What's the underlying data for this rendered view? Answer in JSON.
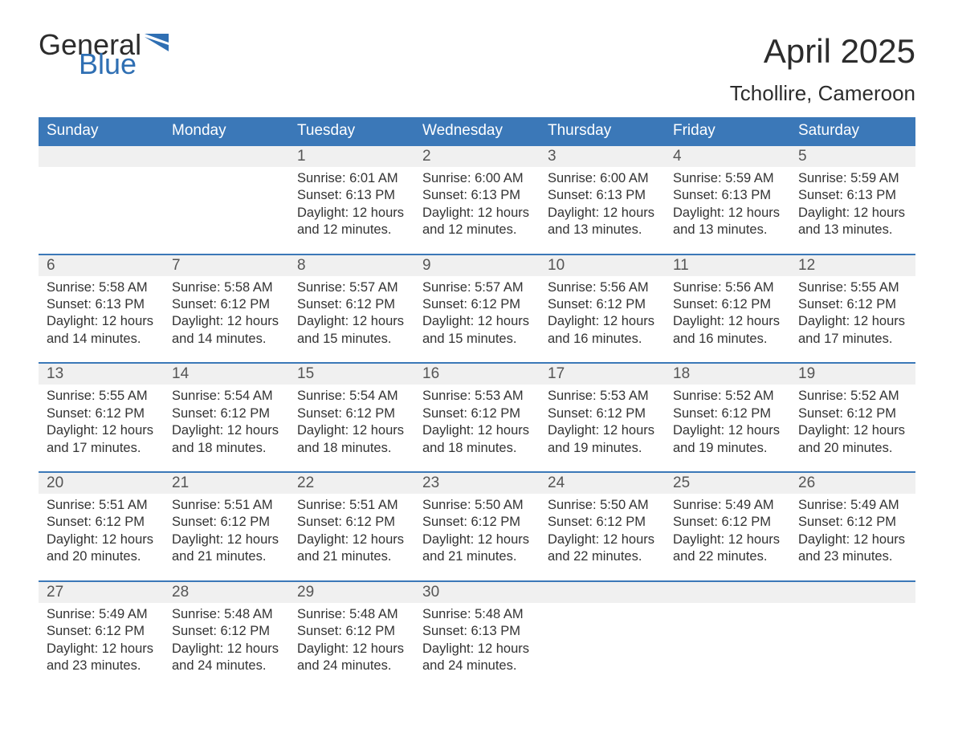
{
  "brand": {
    "word1": "General",
    "word2": "Blue",
    "color1": "#2c2c2c",
    "color2": "#2f6fb3",
    "flag_color": "#2f6fb3"
  },
  "title": "April 2025",
  "location": "Tchollire, Cameroon",
  "theme": {
    "header_bg": "#3b78b8",
    "header_text": "#ffffff",
    "daynum_bg": "#f0f0f0",
    "row_border": "#3b78b8",
    "body_text": "#333333",
    "daynum_text": "#555555"
  },
  "weekdays": [
    "Sunday",
    "Monday",
    "Tuesday",
    "Wednesday",
    "Thursday",
    "Friday",
    "Saturday"
  ],
  "weeks": [
    [
      null,
      null,
      {
        "n": "1",
        "sr": "6:01 AM",
        "ss": "6:13 PM",
        "dl": "12 hours and 12 minutes."
      },
      {
        "n": "2",
        "sr": "6:00 AM",
        "ss": "6:13 PM",
        "dl": "12 hours and 12 minutes."
      },
      {
        "n": "3",
        "sr": "6:00 AM",
        "ss": "6:13 PM",
        "dl": "12 hours and 13 minutes."
      },
      {
        "n": "4",
        "sr": "5:59 AM",
        "ss": "6:13 PM",
        "dl": "12 hours and 13 minutes."
      },
      {
        "n": "5",
        "sr": "5:59 AM",
        "ss": "6:13 PM",
        "dl": "12 hours and 13 minutes."
      }
    ],
    [
      {
        "n": "6",
        "sr": "5:58 AM",
        "ss": "6:13 PM",
        "dl": "12 hours and 14 minutes."
      },
      {
        "n": "7",
        "sr": "5:58 AM",
        "ss": "6:12 PM",
        "dl": "12 hours and 14 minutes."
      },
      {
        "n": "8",
        "sr": "5:57 AM",
        "ss": "6:12 PM",
        "dl": "12 hours and 15 minutes."
      },
      {
        "n": "9",
        "sr": "5:57 AM",
        "ss": "6:12 PM",
        "dl": "12 hours and 15 minutes."
      },
      {
        "n": "10",
        "sr": "5:56 AM",
        "ss": "6:12 PM",
        "dl": "12 hours and 16 minutes."
      },
      {
        "n": "11",
        "sr": "5:56 AM",
        "ss": "6:12 PM",
        "dl": "12 hours and 16 minutes."
      },
      {
        "n": "12",
        "sr": "5:55 AM",
        "ss": "6:12 PM",
        "dl": "12 hours and 17 minutes."
      }
    ],
    [
      {
        "n": "13",
        "sr": "5:55 AM",
        "ss": "6:12 PM",
        "dl": "12 hours and 17 minutes."
      },
      {
        "n": "14",
        "sr": "5:54 AM",
        "ss": "6:12 PM",
        "dl": "12 hours and 18 minutes."
      },
      {
        "n": "15",
        "sr": "5:54 AM",
        "ss": "6:12 PM",
        "dl": "12 hours and 18 minutes."
      },
      {
        "n": "16",
        "sr": "5:53 AM",
        "ss": "6:12 PM",
        "dl": "12 hours and 18 minutes."
      },
      {
        "n": "17",
        "sr": "5:53 AM",
        "ss": "6:12 PM",
        "dl": "12 hours and 19 minutes."
      },
      {
        "n": "18",
        "sr": "5:52 AM",
        "ss": "6:12 PM",
        "dl": "12 hours and 19 minutes."
      },
      {
        "n": "19",
        "sr": "5:52 AM",
        "ss": "6:12 PM",
        "dl": "12 hours and 20 minutes."
      }
    ],
    [
      {
        "n": "20",
        "sr": "5:51 AM",
        "ss": "6:12 PM",
        "dl": "12 hours and 20 minutes."
      },
      {
        "n": "21",
        "sr": "5:51 AM",
        "ss": "6:12 PM",
        "dl": "12 hours and 21 minutes."
      },
      {
        "n": "22",
        "sr": "5:51 AM",
        "ss": "6:12 PM",
        "dl": "12 hours and 21 minutes."
      },
      {
        "n": "23",
        "sr": "5:50 AM",
        "ss": "6:12 PM",
        "dl": "12 hours and 21 minutes."
      },
      {
        "n": "24",
        "sr": "5:50 AM",
        "ss": "6:12 PM",
        "dl": "12 hours and 22 minutes."
      },
      {
        "n": "25",
        "sr": "5:49 AM",
        "ss": "6:12 PM",
        "dl": "12 hours and 22 minutes."
      },
      {
        "n": "26",
        "sr": "5:49 AM",
        "ss": "6:12 PM",
        "dl": "12 hours and 23 minutes."
      }
    ],
    [
      {
        "n": "27",
        "sr": "5:49 AM",
        "ss": "6:12 PM",
        "dl": "12 hours and 23 minutes."
      },
      {
        "n": "28",
        "sr": "5:48 AM",
        "ss": "6:12 PM",
        "dl": "12 hours and 24 minutes."
      },
      {
        "n": "29",
        "sr": "5:48 AM",
        "ss": "6:12 PM",
        "dl": "12 hours and 24 minutes."
      },
      {
        "n": "30",
        "sr": "5:48 AM",
        "ss": "6:13 PM",
        "dl": "12 hours and 24 minutes."
      },
      null,
      null,
      null
    ]
  ],
  "labels": {
    "sunrise": "Sunrise: ",
    "sunset": "Sunset: ",
    "daylight": "Daylight: "
  }
}
